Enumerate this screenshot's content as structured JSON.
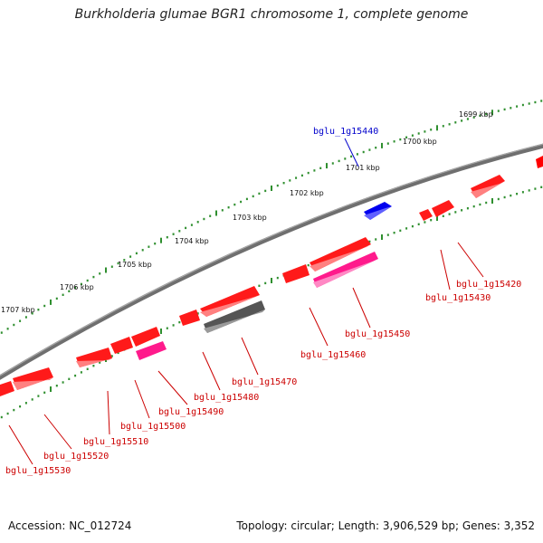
{
  "title": "Burkholderia glumae BGR1 chromosome 1, complete genome",
  "footer": {
    "accession": "Accession: NC_012724",
    "topology": "Topology: circular; Length: 3,906,529 bp; Genes: 3,352"
  },
  "colors": {
    "forward_gene": "#ff0000",
    "reverse_gene": "#ff0000",
    "rrna_like": "#ff1a8c",
    "pseudo": "#555555",
    "highlight": "#0000ee",
    "backbone": "#888888",
    "scale_ticks": "#2f8f2f",
    "label_red": "#cc0000",
    "label_blue": "#0000cc"
  },
  "scale_labels": [
    "1699 kbp",
    "1700 kbp",
    "1701 kbp",
    "1702 kbp",
    "1703 kbp",
    "1704 kbp",
    "1705 kbp",
    "1706 kbp",
    "1707 kbp"
  ],
  "genes": [
    {
      "name": "bglu_1g15420",
      "color": "red"
    },
    {
      "name": "bglu_1g15430",
      "color": "red"
    },
    {
      "name": "bglu_1g15440",
      "color": "blue"
    },
    {
      "name": "bglu_1g15450",
      "color": "red"
    },
    {
      "name": "bglu_1g15460",
      "color": "red"
    },
    {
      "name": "bglu_1g15470",
      "color": "red"
    },
    {
      "name": "bglu_1g15480",
      "color": "red"
    },
    {
      "name": "bglu_1g15490",
      "color": "red"
    },
    {
      "name": "bglu_1g15500",
      "color": "red"
    },
    {
      "name": "bglu_1g15510",
      "color": "red"
    },
    {
      "name": "bglu_1g15520",
      "color": "red"
    },
    {
      "name": "bglu_1g15530",
      "color": "red"
    }
  ]
}
